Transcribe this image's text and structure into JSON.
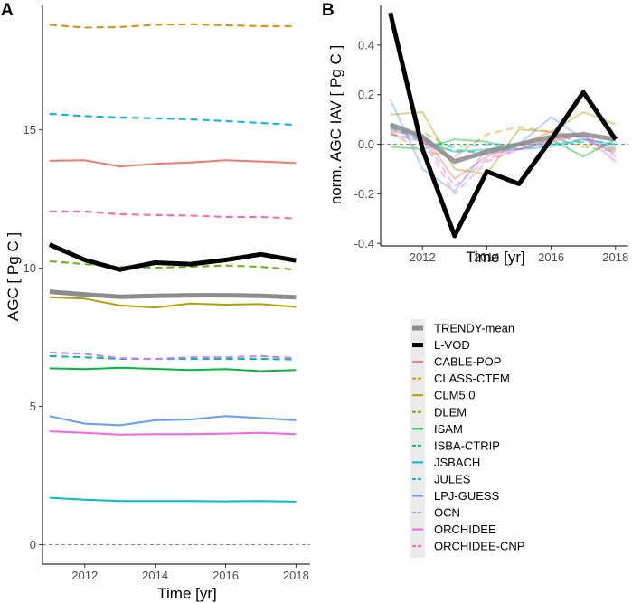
{
  "panels": {
    "a": {
      "letter": "A"
    },
    "b": {
      "letter": "B"
    }
  },
  "chart_data": [
    {
      "type": "line",
      "panel": "A",
      "xlabel": "Time [yr]",
      "ylabel": "AGC  [ Pg C ]",
      "xlim": [
        2010.8,
        2018.4
      ],
      "ylim": [
        -0.7,
        19.5
      ],
      "xticks": [
        2012,
        2014,
        2016,
        2018
      ],
      "yticks": [
        0,
        5,
        10,
        15
      ],
      "reference_line": {
        "y": 0,
        "style": "dashed",
        "color": "#7f7f7f"
      },
      "x": [
        2011,
        2012,
        2013,
        2014,
        2015,
        2016,
        2017,
        2018
      ],
      "series": [
        {
          "name": "TRENDY-mean",
          "color": "#8c8c8c",
          "dash": "solid",
          "width": 5,
          "values": [
            9.15,
            9.05,
            8.97,
            9.0,
            9.02,
            9.02,
            9.0,
            8.95
          ]
        },
        {
          "name": "L-VOD",
          "color": "#000000",
          "dash": "solid",
          "width": 5,
          "values": [
            10.85,
            10.3,
            9.95,
            10.2,
            10.15,
            10.3,
            10.5,
            10.28
          ]
        },
        {
          "name": "CABLE-POP",
          "color": "#f8766d",
          "dash": "solid",
          "width": 2,
          "values": [
            13.88,
            13.9,
            13.68,
            13.77,
            13.82,
            13.9,
            13.86,
            13.8
          ]
        },
        {
          "name": "CLASS-CTEM",
          "color": "#db8e00",
          "dash": "dashed",
          "width": 2,
          "values": [
            18.8,
            18.7,
            18.72,
            18.8,
            18.82,
            18.78,
            18.75,
            18.75
          ]
        },
        {
          "name": "CLM5.0",
          "color": "#b79f00",
          "dash": "solid",
          "width": 2,
          "values": [
            8.95,
            8.9,
            8.65,
            8.58,
            8.72,
            8.68,
            8.7,
            8.6
          ]
        },
        {
          "name": "DLEM",
          "color": "#64b200",
          "dash": "dashed",
          "width": 2,
          "values": [
            10.25,
            10.15,
            10.05,
            10.02,
            10.05,
            10.1,
            10.05,
            9.95
          ]
        },
        {
          "name": "ISAM",
          "color": "#00ba38",
          "dash": "solid",
          "width": 2,
          "values": [
            6.38,
            6.35,
            6.4,
            6.36,
            6.32,
            6.35,
            6.28,
            6.32
          ]
        },
        {
          "name": "ISBA-CTRIP",
          "color": "#00c08b",
          "dash": "dashed",
          "width": 2,
          "values": [
            6.82,
            6.78,
            6.72,
            6.72,
            6.72,
            6.72,
            6.72,
            6.7
          ]
        },
        {
          "name": "JSBACH",
          "color": "#00bfc4",
          "dash": "solid",
          "width": 2,
          "values": [
            1.7,
            1.63,
            1.58,
            1.58,
            1.58,
            1.57,
            1.58,
            1.56
          ]
        },
        {
          "name": "JULES",
          "color": "#00b4f0",
          "dash": "dashed",
          "width": 2,
          "values": [
            15.58,
            15.5,
            15.45,
            15.42,
            15.38,
            15.32,
            15.25,
            15.18
          ]
        },
        {
          "name": "LPJ-GUESS",
          "color": "#619cff",
          "dash": "solid",
          "width": 2,
          "values": [
            4.65,
            4.38,
            4.32,
            4.5,
            4.53,
            4.65,
            4.58,
            4.5
          ]
        },
        {
          "name": "OCN",
          "color": "#c77cff",
          "dash": "dashed",
          "width": 2,
          "values": [
            6.95,
            6.9,
            6.75,
            6.72,
            6.78,
            6.78,
            6.82,
            6.75
          ]
        },
        {
          "name": "ORCHIDEE",
          "color": "#f564e3",
          "dash": "solid",
          "width": 2,
          "values": [
            4.1,
            4.05,
            3.98,
            4.0,
            4.0,
            4.02,
            4.05,
            4.0
          ]
        },
        {
          "name": "ORCHIDEE-CNP",
          "color": "#ff64b0",
          "dash": "dashed",
          "width": 2,
          "values": [
            12.05,
            12.05,
            11.95,
            11.92,
            11.9,
            11.85,
            11.85,
            11.8
          ]
        }
      ]
    },
    {
      "type": "line",
      "panel": "B",
      "xlabel": "Time [yr]",
      "ylabel": "norm. AGC IAV  [ Pg C ]",
      "xlim": [
        2010.7,
        2018.4
      ],
      "ylim": [
        -0.41,
        0.56
      ],
      "xticks": [
        2012,
        2014,
        2016,
        2018
      ],
      "yticks": [
        -0.4,
        -0.2,
        0.0,
        0.2,
        0.4
      ],
      "reference_line": {
        "y": 0,
        "style": "dashed",
        "color": "#7f7f7f"
      },
      "x": [
        2011,
        2012,
        2013,
        2014,
        2015,
        2016,
        2017,
        2018
      ],
      "series": [
        {
          "name": "TRENDY-mean",
          "color": "#8c8c8c",
          "dash": "solid",
          "width": 5,
          "opacity": 0.85,
          "values": [
            0.08,
            0.03,
            -0.07,
            -0.03,
            0.0,
            0.03,
            0.04,
            0.02
          ]
        },
        {
          "name": "L-VOD",
          "color": "#000000",
          "dash": "solid",
          "width": 5,
          "opacity": 1,
          "values": [
            0.53,
            -0.02,
            -0.37,
            -0.11,
            -0.16,
            0.02,
            0.21,
            0.02
          ]
        },
        {
          "name": "CABLE-POP",
          "color": "#f8766d",
          "dash": "solid",
          "width": 2,
          "opacity": 0.45,
          "values": [
            0.05,
            0.04,
            -0.14,
            -0.05,
            0.0,
            0.05,
            0.03,
            -0.02
          ]
        },
        {
          "name": "CLASS-CTEM",
          "color": "#db8e00",
          "dash": "dashed",
          "width": 2,
          "opacity": 0.45,
          "values": [
            0.05,
            -0.03,
            -0.05,
            0.04,
            0.07,
            0.05,
            0.0,
            -0.02
          ]
        },
        {
          "name": "CLM5.0",
          "color": "#b79f00",
          "dash": "solid",
          "width": 2,
          "opacity": 0.45,
          "values": [
            0.12,
            0.13,
            -0.1,
            -0.12,
            0.06,
            0.05,
            0.13,
            0.08
          ]
        },
        {
          "name": "DLEM",
          "color": "#64b200",
          "dash": "dashed",
          "width": 2,
          "opacity": 0.45,
          "values": [
            0.06,
            0.05,
            -0.02,
            -0.04,
            0.0,
            0.03,
            -0.01,
            -0.03
          ]
        },
        {
          "name": "ISAM",
          "color": "#00ba38",
          "dash": "solid",
          "width": 2,
          "opacity": 0.45,
          "values": [
            -0.01,
            -0.02,
            0.02,
            0.01,
            -0.02,
            0.02,
            -0.05,
            0.02
          ]
        },
        {
          "name": "ISBA-CTRIP",
          "color": "#00c08b",
          "dash": "dashed",
          "width": 2,
          "opacity": 0.45,
          "values": [
            0.04,
            0.02,
            -0.01,
            0.0,
            0.0,
            0.0,
            0.01,
            -0.01
          ]
        },
        {
          "name": "JSBACH",
          "color": "#00bfc4",
          "dash": "solid",
          "width": 2,
          "opacity": 0.45,
          "values": [
            0.07,
            0.01,
            -0.03,
            -0.02,
            -0.02,
            -0.01,
            0.02,
            0.0
          ]
        },
        {
          "name": "JULES",
          "color": "#00b4f0",
          "dash": "dashed",
          "width": 2,
          "opacity": 0.45,
          "values": [
            0.07,
            0.02,
            -0.03,
            -0.03,
            -0.02,
            0.0,
            0.02,
            0.0
          ]
        },
        {
          "name": "LPJ-GUESS",
          "color": "#619cff",
          "dash": "solid",
          "width": 2,
          "opacity": 0.45,
          "values": [
            0.18,
            -0.1,
            -0.19,
            -0.02,
            0.0,
            0.11,
            0.02,
            -0.03
          ]
        },
        {
          "name": "OCN",
          "color": "#c77cff",
          "dash": "dashed",
          "width": 2,
          "opacity": 0.45,
          "values": [
            0.08,
            0.03,
            -0.17,
            -0.06,
            -0.02,
            0.02,
            0.05,
            -0.05
          ]
        },
        {
          "name": "ORCHIDEE",
          "color": "#f564e3",
          "dash": "solid",
          "width": 2,
          "opacity": 0.45,
          "values": [
            0.04,
            0.01,
            -0.06,
            -0.04,
            -0.02,
            0.01,
            0.04,
            -0.07
          ]
        },
        {
          "name": "ORCHIDEE-CNP",
          "color": "#ff64b0",
          "dash": "dashed",
          "width": 2,
          "opacity": 0.45,
          "values": [
            0.06,
            0.02,
            -0.2,
            -0.07,
            -0.02,
            0.02,
            0.03,
            -0.04
          ]
        }
      ]
    }
  ]
}
